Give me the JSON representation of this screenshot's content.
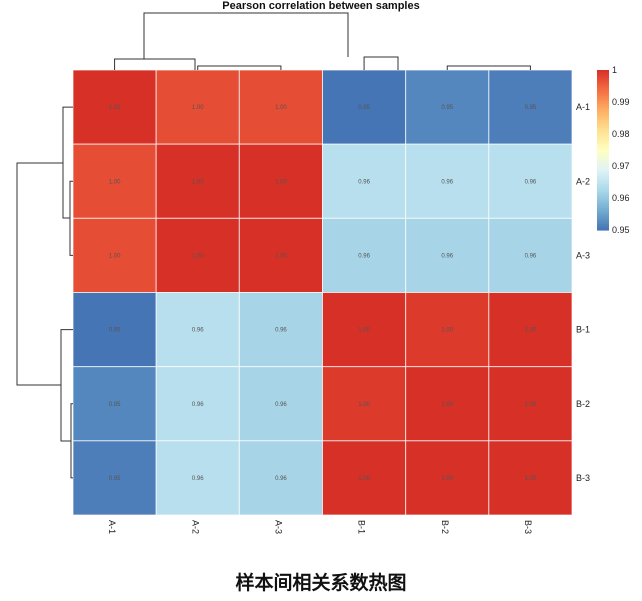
{
  "chart_data": {
    "type": "heatmap",
    "title": "Pearson correlation between samples",
    "rows": [
      "A-1",
      "A-2",
      "A-3",
      "B-1",
      "B-2",
      "B-3"
    ],
    "columns": [
      "A-1",
      "A-2",
      "A-3",
      "B-1",
      "B-2",
      "B-3"
    ],
    "values": [
      [
        1.0,
        0.997,
        0.997,
        0.95,
        0.952,
        0.951
      ],
      [
        0.997,
        1.0,
        1.0,
        0.964,
        0.964,
        0.964
      ],
      [
        0.997,
        1.0,
        1.0,
        0.962,
        0.962,
        0.962
      ],
      [
        0.95,
        0.964,
        0.962,
        1.0,
        0.999,
        1.0
      ],
      [
        0.952,
        0.964,
        0.962,
        0.999,
        1.0,
        1.0
      ],
      [
        0.951,
        0.964,
        0.962,
        1.0,
        1.0,
        1.0
      ]
    ],
    "cell_labels": [
      [
        "1.00",
        "1.00",
        "1.00",
        "0.95",
        "0.95",
        "0.95"
      ],
      [
        "1.00",
        "1.00",
        "1.00",
        "0.96",
        "0.96",
        "0.96"
      ],
      [
        "1.00",
        "1.00",
        "1.00",
        "0.96",
        "0.96",
        "0.96"
      ],
      [
        "0.95",
        "0.96",
        "0.96",
        "1.00",
        "1.00",
        "1.00"
      ],
      [
        "0.95",
        "0.96",
        "0.96",
        "1.00",
        "1.00",
        "1.00"
      ],
      [
        "0.95",
        "0.96",
        "0.96",
        "1.00",
        "1.00",
        "1.00"
      ]
    ],
    "color_range": [
      0.95,
      1
    ],
    "colorbar_ticks": [
      "1",
      "0.99",
      "0.98",
      "0.97",
      "0.96",
      "0.95"
    ],
    "colorscale": [
      "#4575b4",
      "#74add1",
      "#abd9e9",
      "#e0f3f8",
      "#ffffbf",
      "#fee090",
      "#fdae61",
      "#f46d43",
      "#d73027"
    ],
    "dendrogram": "rows and columns clustered: ((A-1,(A-2,A-3)),(B-1,(B-2,B-3)))",
    "legend_position": "top-right"
  },
  "caption": "样本间相关系数热图"
}
